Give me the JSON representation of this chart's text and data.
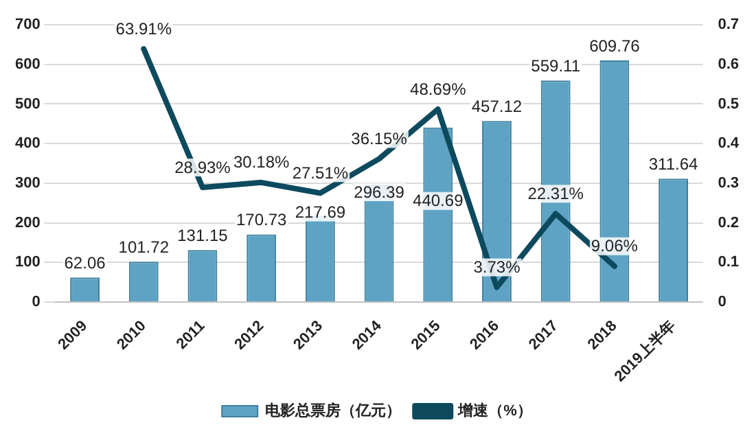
{
  "chart_data": {
    "type": "bar",
    "categories": [
      "2009",
      "2010",
      "2011",
      "2012",
      "2013",
      "2014",
      "2015",
      "2016",
      "2017",
      "2018",
      "2019上半年"
    ],
    "series": [
      {
        "name": "电影总票房（亿元）",
        "color": "#5fa3c4",
        "values": [
          62.06,
          101.72,
          131.15,
          170.73,
          217.69,
          296.39,
          440.69,
          457.12,
          559.11,
          609.76,
          311.64
        ],
        "value_labels": [
          "62.06",
          "101.72",
          "131.15",
          "170.73",
          "217.69",
          "296.39",
          "440.69",
          "457.12",
          "559.11",
          "609.76",
          "311.64"
        ]
      },
      {
        "name": "增速（%）",
        "type": "line",
        "axis": "y2",
        "color": "#0d4a5e",
        "values": [
          null,
          0.6391,
          0.2893,
          0.3018,
          0.2751,
          0.3615,
          0.4869,
          0.0373,
          0.2231,
          0.0906,
          null
        ],
        "value_labels": [
          null,
          "63.91%",
          "28.93%",
          "30.18%",
          "27.51%",
          "36.15%",
          "48.69%",
          "3.73%",
          "22.31%",
          "9.06%",
          null
        ]
      }
    ],
    "ylim": [
      0,
      700
    ],
    "yticks": [
      0,
      100,
      200,
      300,
      400,
      500,
      600,
      700
    ],
    "y2lim": [
      0,
      0.7
    ],
    "y2ticks": [
      0,
      0.1,
      0.2,
      0.3,
      0.4,
      0.5,
      0.6,
      0.7
    ],
    "grid": "y",
    "legend": "bottom",
    "marker": "none",
    "line_style": "solid"
  }
}
